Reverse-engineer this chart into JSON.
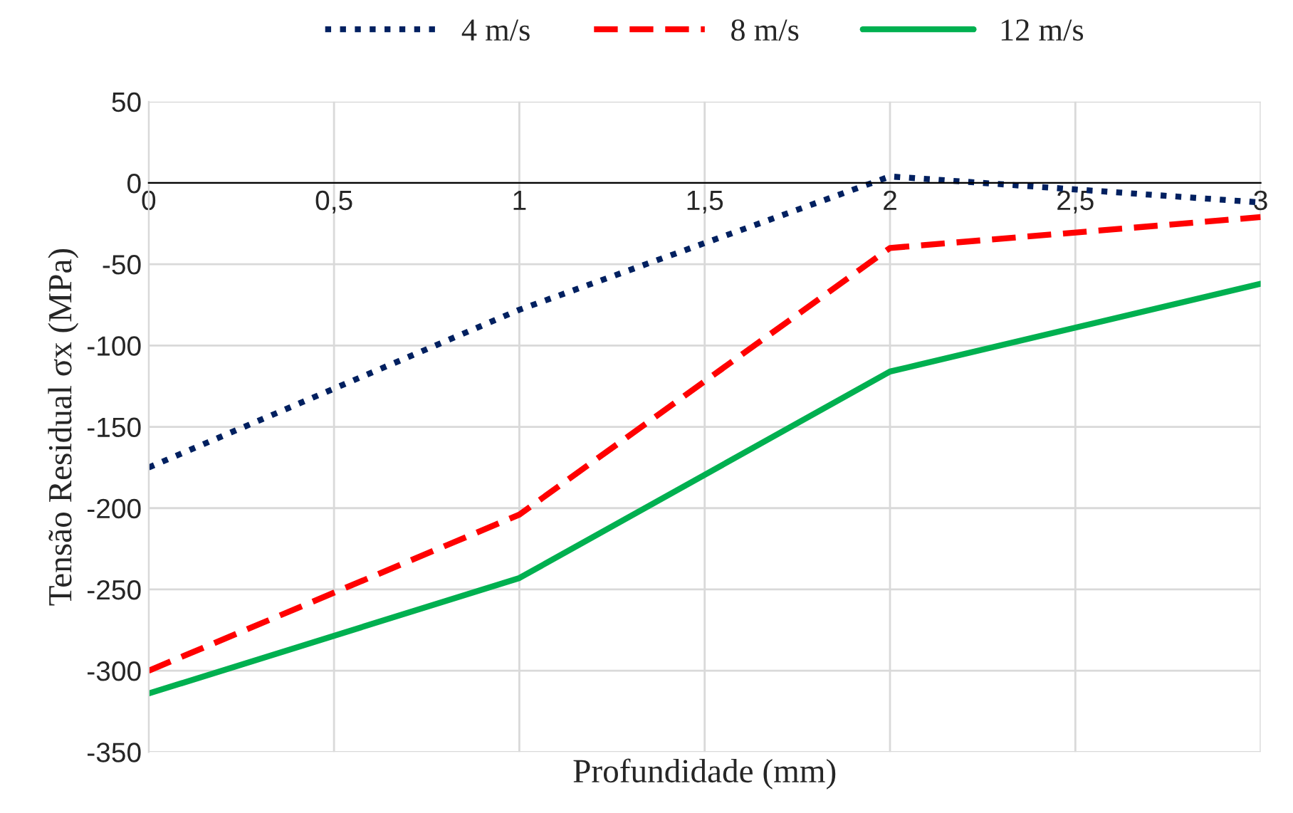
{
  "chart_data": {
    "type": "line",
    "xlabel": "Profundidade (mm)",
    "ylabel": "Tensão Residual σx (MPa)",
    "x": [
      0,
      1,
      2,
      3
    ],
    "series": [
      {
        "name": "4 m/s",
        "color": "#002060",
        "values": [
          -175,
          -78,
          4,
          -12
        ],
        "line_style": "dotted"
      },
      {
        "name": "8 m/s",
        "color": "#ff0000",
        "values": [
          -300,
          -204,
          -40,
          -21
        ],
        "line_style": "dashed"
      },
      {
        "name": "12 m/s",
        "color": "#00b050",
        "values": [
          -314,
          -243,
          -116,
          -62
        ],
        "line_style": "solid"
      }
    ],
    "xlim": [
      0,
      3
    ],
    "xticks": [
      0,
      {
        "value": 0.5,
        "label": "0,5"
      },
      1,
      {
        "value": 1.5,
        "label": "1,5"
      },
      2,
      {
        "value": 2.5,
        "label": "2,5"
      },
      3
    ],
    "ylim": [
      -350,
      50
    ],
    "yticks": [
      -350,
      -300,
      -250,
      -200,
      -150,
      -100,
      -50,
      0,
      50
    ],
    "grid": true,
    "legend": "top",
    "marker": "none"
  }
}
